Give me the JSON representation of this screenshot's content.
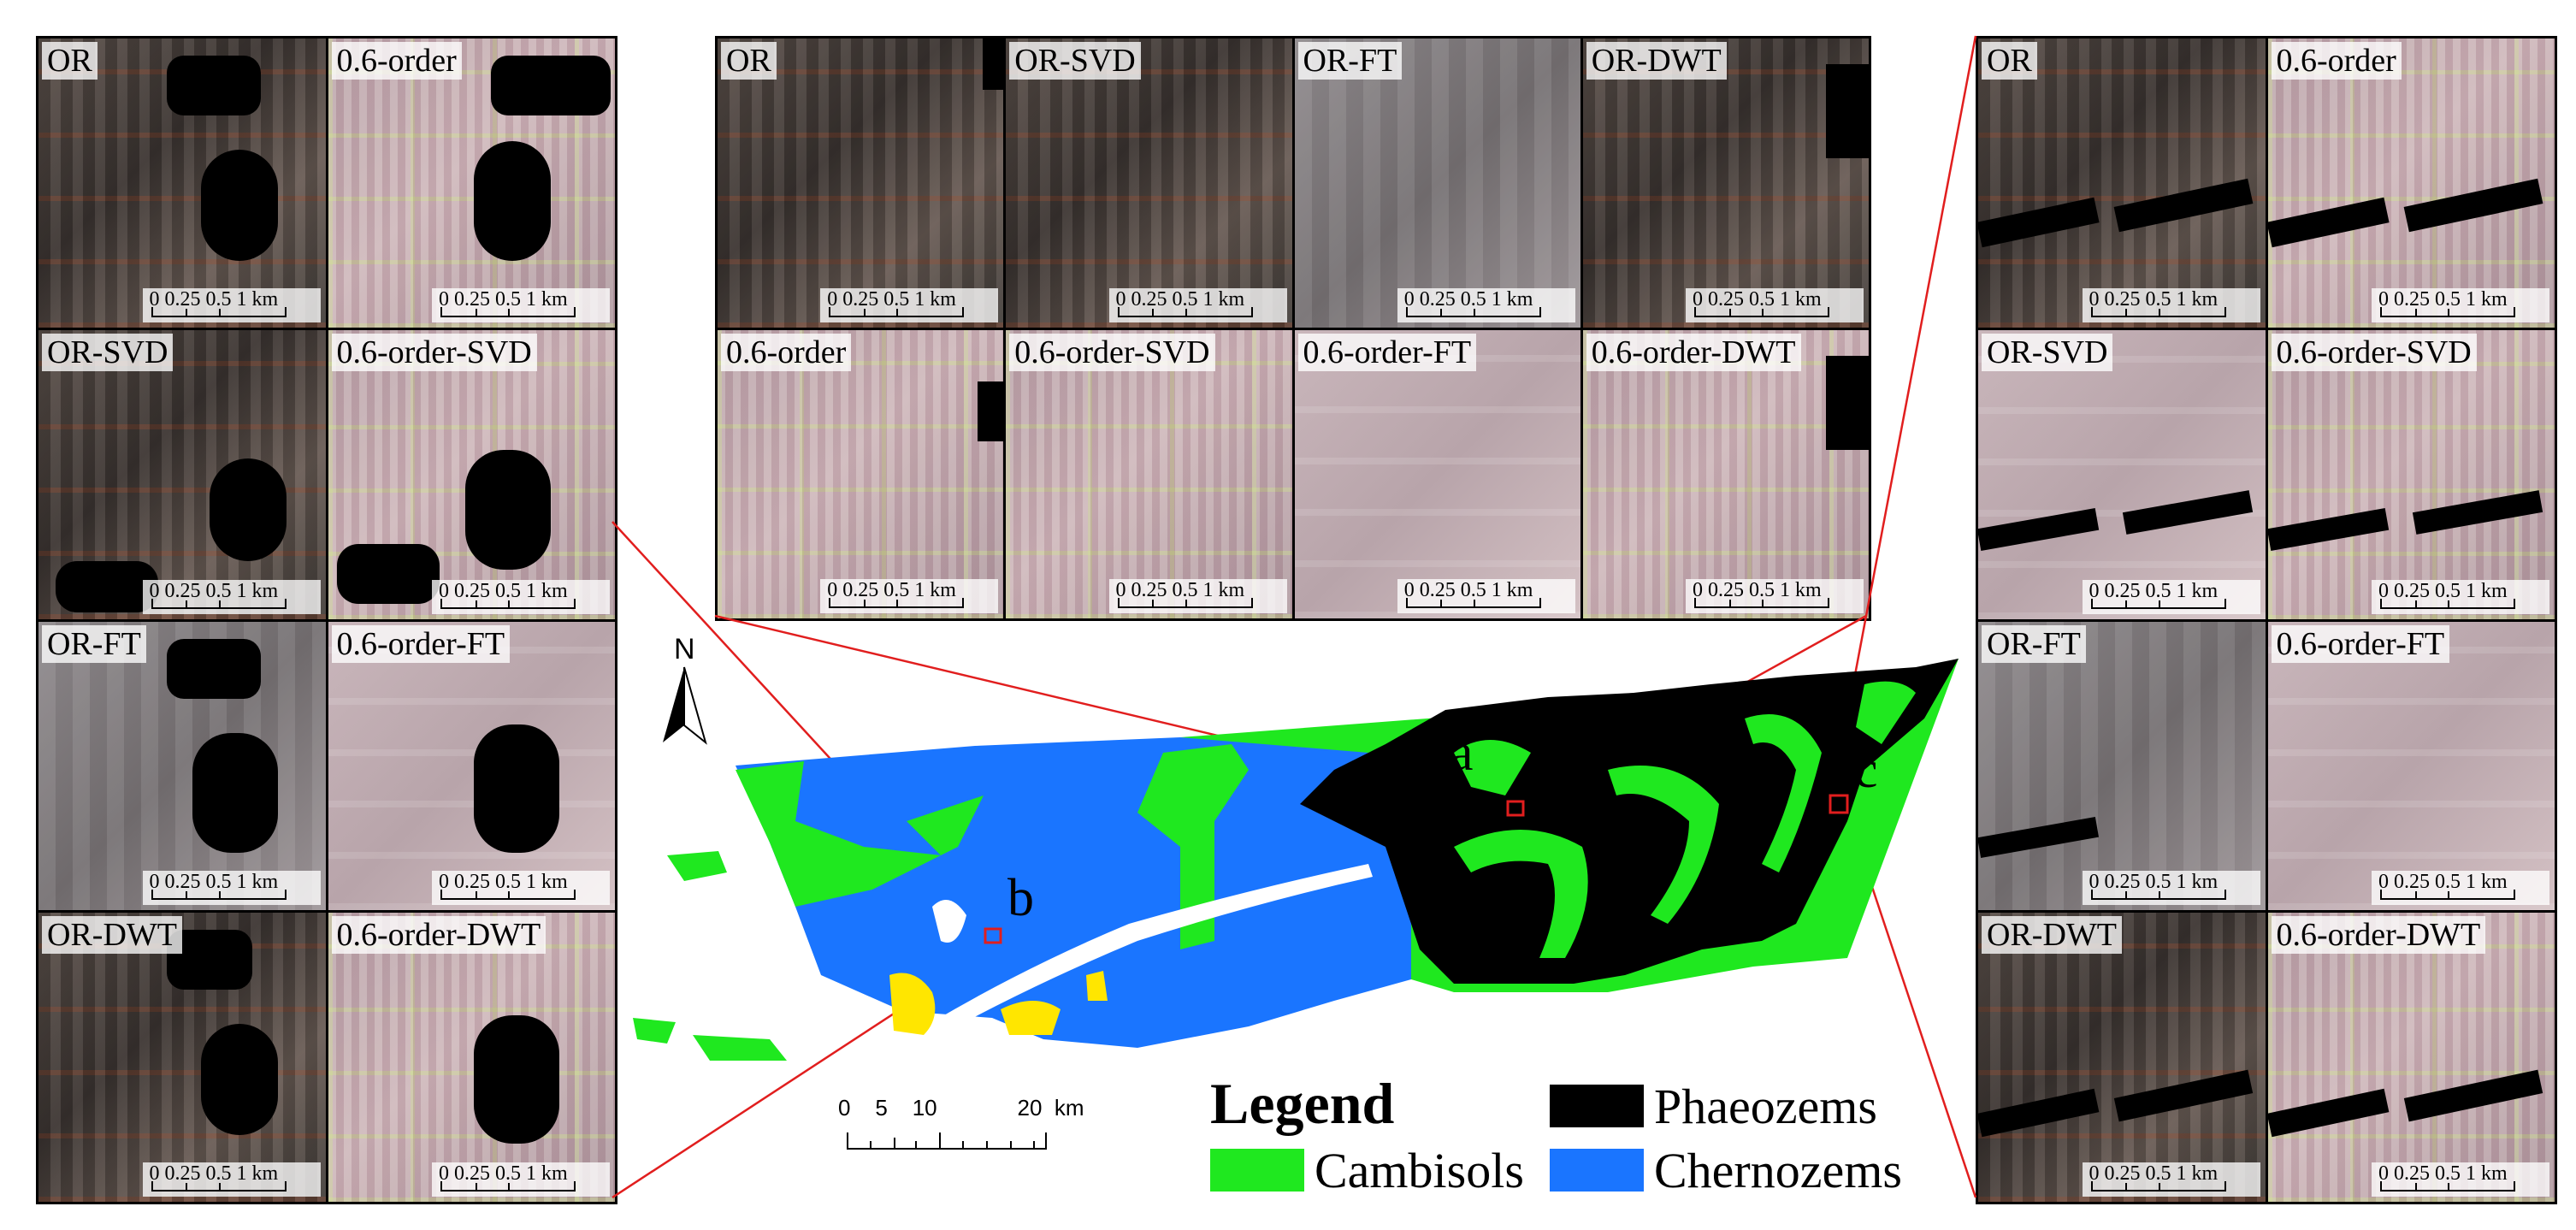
{
  "panel_b": {
    "tiles": [
      "OR",
      "0.6-order",
      "OR-SVD",
      "0.6-order-SVD",
      "OR-FT",
      "0.6-order-FT",
      "OR-DWT",
      "0.6-order-DWT"
    ],
    "scale_label": "0 0.25 0.5    1 km"
  },
  "panel_a": {
    "tiles": [
      "OR",
      "OR-SVD",
      "OR-FT",
      "OR-DWT",
      "0.6-order",
      "0.6-order-SVD",
      "0.6-order-FT",
      "0.6-order-DWT"
    ],
    "scale_label": "0 0.25 0.5    1 km"
  },
  "panel_c": {
    "tiles": [
      "OR",
      "0.6-order",
      "OR-SVD",
      "0.6-order-SVD",
      "OR-FT",
      "0.6-order-FT",
      "OR-DWT",
      "0.6-order-DWT"
    ],
    "scale_label": "0 0.25 0.5    1 km"
  },
  "map": {
    "north_label": "N",
    "site_labels": [
      "a",
      "b",
      "c"
    ],
    "scale_label": "0    5    10             20  km",
    "legend": {
      "title": "Legend",
      "items": [
        {
          "label": "Cambisols",
          "color": "#1fe81f"
        },
        {
          "label": "Phaeozems",
          "color": "#000000"
        },
        {
          "label": "Chernozems",
          "color": "#1a75ff"
        }
      ]
    },
    "colors": {
      "cambisols": "#1fe81f",
      "phaeozems": "#000000",
      "chernozems": "#1a75ff",
      "other": "#ffe600",
      "connector": "#e11e1e"
    }
  }
}
